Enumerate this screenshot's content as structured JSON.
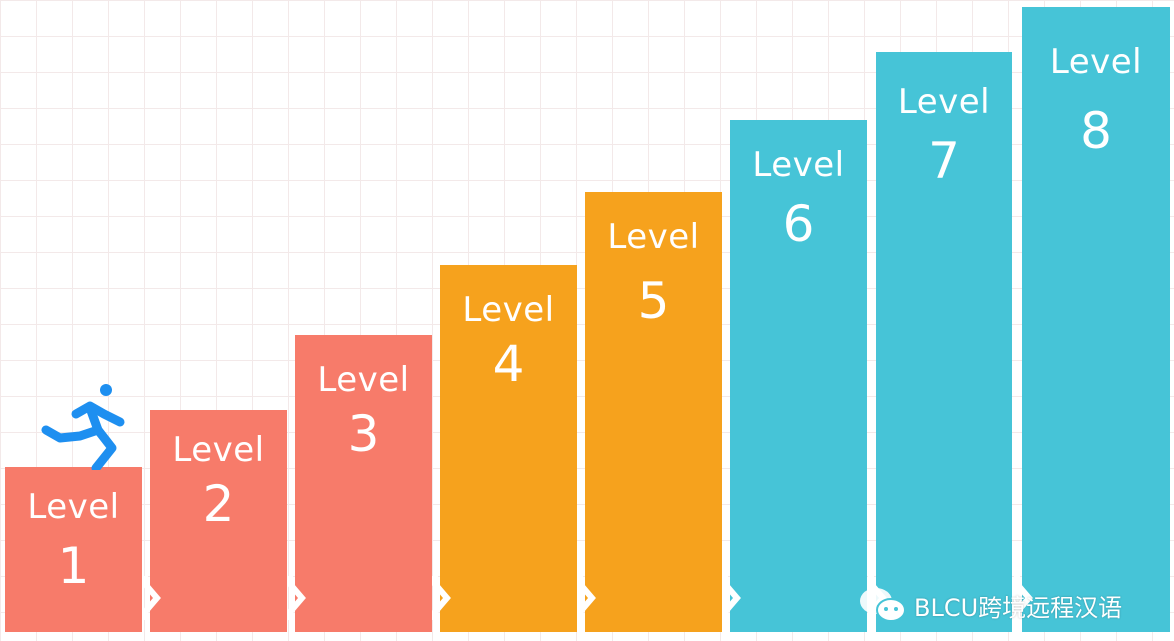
{
  "colors": {
    "red": "#F77B6A",
    "orange": "#F6A21D",
    "teal": "#46C4D7",
    "runner": "#1E8FF0"
  },
  "steps": [
    {
      "label": "Level",
      "number": "1",
      "color": "red"
    },
    {
      "label": "Level",
      "number": "2",
      "color": "red"
    },
    {
      "label": "Level",
      "number": "3",
      "color": "red"
    },
    {
      "label": "Level",
      "number": "4",
      "color": "orange"
    },
    {
      "label": "Level",
      "number": "5",
      "color": "orange"
    },
    {
      "label": "Level",
      "number": "6",
      "color": "teal"
    },
    {
      "label": "Level",
      "number": "7",
      "color": "teal"
    },
    {
      "label": "Level",
      "number": "8",
      "color": "teal"
    }
  ],
  "icons": {
    "runner": "running-person-icon",
    "watermark": "wechat-icon"
  },
  "watermark": "BLCU跨境远程汉语"
}
